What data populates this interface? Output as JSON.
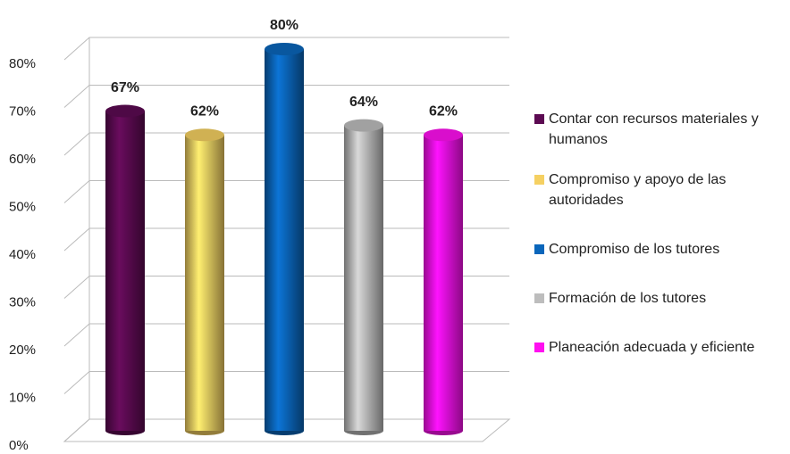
{
  "chart_data": {
    "type": "bar",
    "series": [
      {
        "name": "Contar con recursos materiales y humanos",
        "color": "#5c0a52",
        "values": [
          67
        ],
        "value_labels": [
          "67%"
        ]
      },
      {
        "name": "Compromiso y apoyo de las autoridades",
        "color": "#f5d062",
        "values": [
          62
        ],
        "value_labels": [
          "62%"
        ]
      },
      {
        "name": "Compromiso de los tutores",
        "color": "#0a66bb",
        "values": [
          80
        ],
        "value_labels": [
          "80%"
        ]
      },
      {
        "name": "Formación de los  tutores",
        "color": "#bdbdbd",
        "values": [
          64
        ],
        "value_labels": [
          "64%"
        ]
      },
      {
        "name": "Planeación adecuada y eficiente",
        "color": "#ff10f0",
        "values": [
          62
        ],
        "value_labels": [
          "62%"
        ]
      }
    ],
    "ylim": [
      0,
      80
    ],
    "yticks": [
      {
        "value": 0,
        "label": "0%"
      },
      {
        "value": 10,
        "label": "10%"
      },
      {
        "value": 20,
        "label": "20%"
      },
      {
        "value": 30,
        "label": "30%"
      },
      {
        "value": 40,
        "label": "40%"
      },
      {
        "value": 50,
        "label": "50%"
      },
      {
        "value": 60,
        "label": "60%"
      },
      {
        "value": 70,
        "label": "70%"
      },
      {
        "value": 80,
        "label": "80%"
      }
    ],
    "grid": true
  }
}
